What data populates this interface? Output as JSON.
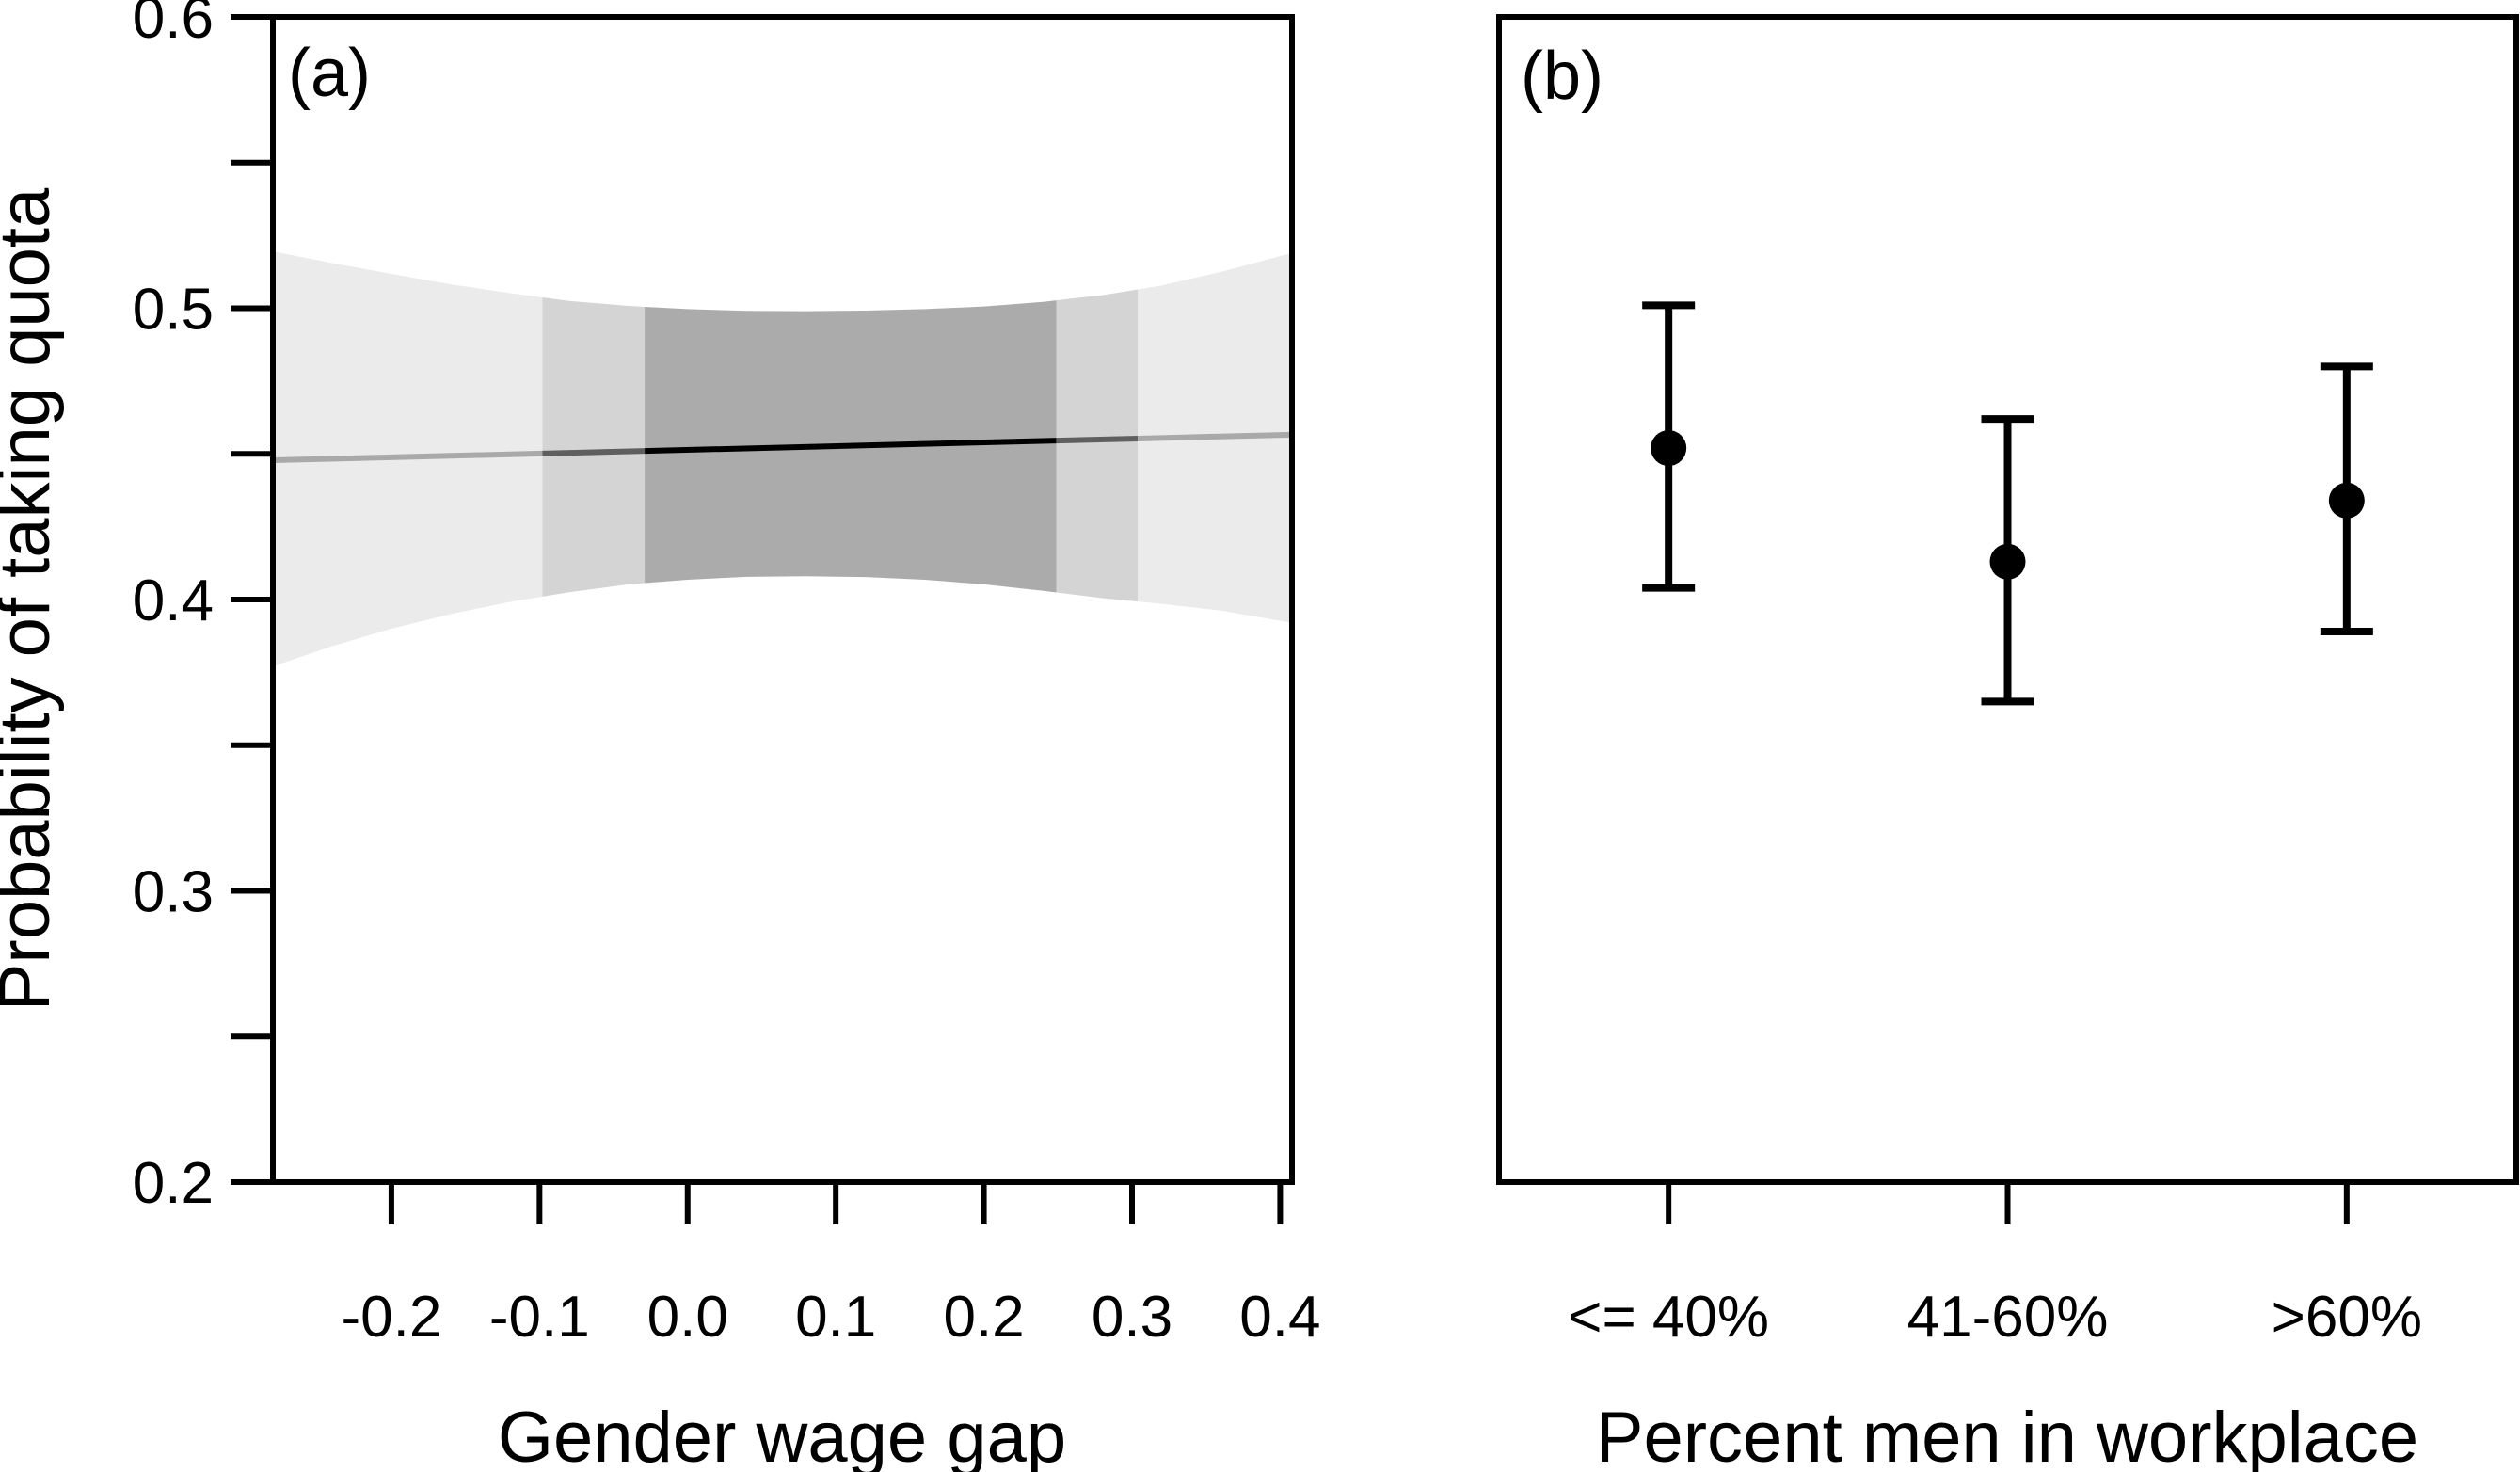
{
  "figure": {
    "background": "#ffffff",
    "axis_color": "#000000",
    "ylabel": "Probability of taking quota"
  },
  "chart_data": [
    {
      "type": "area",
      "panel_label": "(a)",
      "xlabel": "Gender wage gap",
      "ylabel": "Probability of taking quota",
      "xlim": [
        -0.28,
        0.408
      ],
      "ylim": [
        0.2,
        0.6
      ],
      "xticks": [
        {
          "v": -0.2,
          "label": "-0.2"
        },
        {
          "v": -0.1,
          "label": "-0.1"
        },
        {
          "v": 0.0,
          "label": "0.0"
        },
        {
          "v": 0.1,
          "label": "0.1"
        },
        {
          "v": 0.2,
          "label": "0.2"
        },
        {
          "v": 0.3,
          "label": "0.3"
        },
        {
          "v": 0.4,
          "label": "0.4"
        }
      ],
      "yticks": [
        {
          "v": 0.6,
          "label": "0.6"
        },
        {
          "v": 0.55,
          "label": ""
        },
        {
          "v": 0.5,
          "label": "0.5"
        },
        {
          "v": 0.45,
          "label": ""
        },
        {
          "v": 0.4,
          "label": "0.4"
        },
        {
          "v": 0.35,
          "label": ""
        },
        {
          "v": 0.3,
          "label": "0.3"
        },
        {
          "v": 0.25,
          "label": ""
        },
        {
          "v": 0.2,
          "label": "0.2"
        }
      ],
      "band": {
        "x": [
          -0.28,
          -0.24,
          -0.2,
          -0.16,
          -0.12,
          -0.08,
          -0.04,
          0.0,
          0.04,
          0.08,
          0.12,
          0.16,
          0.2,
          0.24,
          0.28,
          0.32,
          0.36,
          0.408
        ],
        "upper": [
          0.5195,
          0.5155,
          0.5118,
          0.5082,
          0.5052,
          0.5025,
          0.5008,
          0.4997,
          0.4991,
          0.499,
          0.4992,
          0.4997,
          0.5006,
          0.5022,
          0.5045,
          0.5078,
          0.5125,
          0.519
        ],
        "lower": [
          0.377,
          0.384,
          0.39,
          0.395,
          0.3992,
          0.4025,
          0.4052,
          0.4068,
          0.4078,
          0.408,
          0.4077,
          0.4068,
          0.4052,
          0.403,
          0.4005,
          0.3985,
          0.3962,
          0.392
        ]
      },
      "fit_line": {
        "x": [
          -0.28,
          0.408
        ],
        "y": [
          0.4478,
          0.4566
        ]
      },
      "shade_regions": [
        {
          "x0": -0.28,
          "x1": -0.098,
          "fill": "#ebebeb",
          "line_color": "#a9a9a9"
        },
        {
          "x0": -0.098,
          "x1": -0.029,
          "fill": "#d4d4d4",
          "line_color": "#5f5f5f"
        },
        {
          "x0": -0.029,
          "x1": 0.249,
          "fill": "#ababab",
          "line_color": "#000000"
        },
        {
          "x0": 0.249,
          "x1": 0.304,
          "fill": "#d4d4d4",
          "line_color": "#5f5f5f"
        },
        {
          "x0": 0.304,
          "x1": 0.408,
          "fill": "#ebebeb",
          "line_color": "#a9a9a9"
        }
      ]
    },
    {
      "type": "scatter",
      "panel_label": "(b)",
      "xlabel": "Percent men in workplace",
      "ylim": [
        0.2,
        0.6
      ],
      "categories": [
        "<= 40%",
        "41-60%",
        ">60%"
      ],
      "estimates": [
        0.452,
        0.413,
        0.434
      ],
      "ci_low": [
        0.404,
        0.365,
        0.389
      ],
      "ci_high": [
        0.501,
        0.462,
        0.48
      ],
      "point_color": "#000000",
      "errorbar_color": "#000000"
    }
  ]
}
